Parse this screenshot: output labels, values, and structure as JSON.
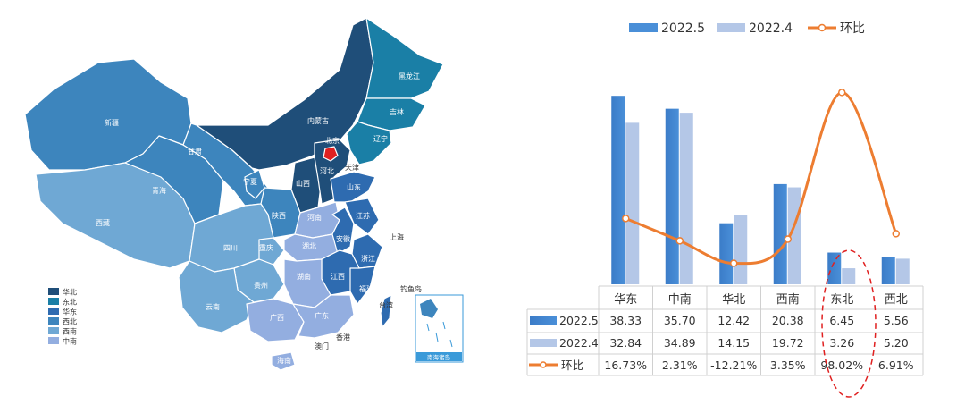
{
  "map": {
    "provinces": [
      {
        "id": "xinjiang",
        "name": "新疆",
        "region": "西北"
      },
      {
        "id": "xizang",
        "name": "西藏",
        "region": "西南"
      },
      {
        "id": "qinghai",
        "name": "青海",
        "region": "西北"
      },
      {
        "id": "gansu",
        "name": "甘肃",
        "region": "西北"
      },
      {
        "id": "neimenggu",
        "name": "内蒙古",
        "region": "华北"
      },
      {
        "id": "heilongjiang",
        "name": "黑龙江",
        "region": "东北"
      },
      {
        "id": "jilin",
        "name": "吉林",
        "region": "东北"
      },
      {
        "id": "liaoning",
        "name": "辽宁",
        "region": "东北"
      },
      {
        "id": "ningxia",
        "name": "宁夏",
        "region": "西北"
      },
      {
        "id": "shanxi",
        "name": "山西",
        "region": "华北"
      },
      {
        "id": "hebei",
        "name": "河北",
        "region": "华北"
      },
      {
        "id": "beijing",
        "name": "北京",
        "region": "华北"
      },
      {
        "id": "tianjin",
        "name": "天津",
        "region": "华北"
      },
      {
        "id": "shandong",
        "name": "山东",
        "region": "华东"
      },
      {
        "id": "shaanxi",
        "name": "陕西",
        "region": "西北"
      },
      {
        "id": "henan",
        "name": "河南",
        "region": "中南"
      },
      {
        "id": "sichuan",
        "name": "四川",
        "region": "西南"
      },
      {
        "id": "chongqing",
        "name": "重庆",
        "region": "西南"
      },
      {
        "id": "hubei",
        "name": "湖北",
        "region": "中南"
      },
      {
        "id": "anhui",
        "name": "安徽",
        "region": "华东"
      },
      {
        "id": "jiangsu",
        "name": "江苏",
        "region": "华东"
      },
      {
        "id": "shanghai",
        "name": "上海",
        "region": "华东"
      },
      {
        "id": "zhejiang",
        "name": "浙江",
        "region": "华东"
      },
      {
        "id": "jiangxi",
        "name": "江西",
        "region": "华东"
      },
      {
        "id": "hunan",
        "name": "湖南",
        "region": "中南"
      },
      {
        "id": "guizhou",
        "name": "贵州",
        "region": "西南"
      },
      {
        "id": "yunnan",
        "name": "云南",
        "region": "西南"
      },
      {
        "id": "guangxi",
        "name": "广西",
        "region": "中南"
      },
      {
        "id": "guangdong",
        "name": "广东",
        "region": "中南"
      },
      {
        "id": "fujian",
        "name": "福建",
        "region": "华东"
      },
      {
        "id": "hainan",
        "name": "海南",
        "region": "中南"
      },
      {
        "id": "taiwan",
        "name": "台湾",
        "region": "华东"
      }
    ],
    "outside_labels": {
      "tianjin": "天津",
      "shanghai": "上海",
      "diaoyudao": "钓鱼岛",
      "xianggang": "香港",
      "aomen": "澳门",
      "taiwan": "台湾",
      "nanhai": "南海诸岛"
    },
    "legend": [
      {
        "name": "华北",
        "color": "#1f4e79"
      },
      {
        "name": "东北",
        "color": "#1a7fa6"
      },
      {
        "name": "华东",
        "color": "#2e6bb0"
      },
      {
        "name": "西北",
        "color": "#3d85bd"
      },
      {
        "name": "西南",
        "color": "#6fa8d4"
      },
      {
        "name": "中南",
        "color": "#93aee0"
      }
    ]
  },
  "chart_data": {
    "type": "bar",
    "categories": [
      "华东",
      "中南",
      "华北",
      "西南",
      "东北",
      "西北"
    ],
    "series": [
      {
        "name": "2022.5",
        "type": "bar",
        "color": "#4a8fd8",
        "values": [
          38.33,
          35.7,
          12.42,
          20.38,
          6.45,
          5.56
        ],
        "labels": [
          "38.33",
          "35.70",
          "12.42",
          "20.38",
          "6.45",
          "5.56"
        ]
      },
      {
        "name": "2022.4",
        "type": "bar",
        "color": "#b4c7e7",
        "values": [
          32.84,
          34.89,
          14.15,
          19.72,
          3.26,
          5.2
        ],
        "labels": [
          "32.84",
          "34.89",
          "14.15",
          "19.72",
          "3.26",
          "5.20"
        ]
      },
      {
        "name": "环比",
        "type": "line",
        "color": "#ed7d31",
        "values": [
          16.73,
          2.31,
          -12.21,
          3.35,
          98.02,
          6.91
        ],
        "labels": [
          "16.73%",
          "2.31%",
          "-12.21%",
          "3.35%",
          "98.02%",
          "6.91%"
        ]
      }
    ],
    "ylim_bar": [
      0,
      40
    ],
    "ylim_line": [
      -20,
      100
    ],
    "legend_position": "top",
    "highlight_category": "东北"
  }
}
